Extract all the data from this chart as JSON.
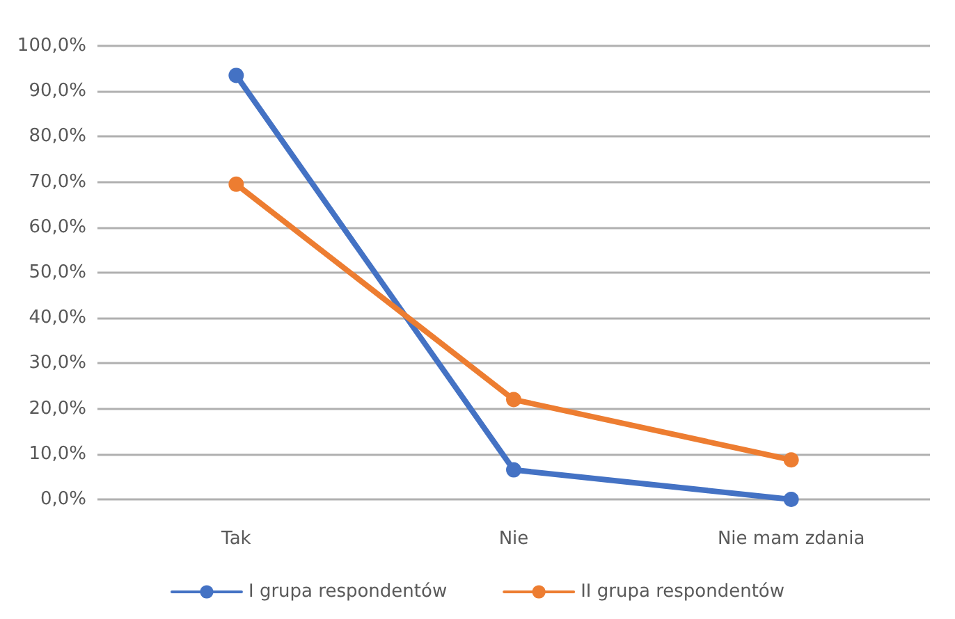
{
  "chart_data": {
    "type": "line",
    "categories": [
      "Tak",
      "Nie",
      "Nie mam zdania"
    ],
    "series": [
      {
        "name": "I grupa respondentów",
        "color": "#4472c4",
        "values": [
          93.5,
          6.5,
          0
        ]
      },
      {
        "name": "II grupa respondentów",
        "color": "#ed7d31",
        "values": [
          69.5,
          22,
          8.7
        ]
      }
    ],
    "ylim": [
      0,
      100
    ],
    "yticks": [
      {
        "value": 0,
        "label": "0,0%"
      },
      {
        "value": 10,
        "label": "10,0%"
      },
      {
        "value": 20,
        "label": "20,0%"
      },
      {
        "value": 30,
        "label": "30,0%"
      },
      {
        "value": 40,
        "label": "40,0%"
      },
      {
        "value": 50,
        "label": "50,0%"
      },
      {
        "value": 60,
        "label": "60,0%"
      },
      {
        "value": 70,
        "label": "70,0%"
      },
      {
        "value": 80,
        "label": "80,0%"
      },
      {
        "value": 90,
        "label": "90,0%"
      },
      {
        "value": 100,
        "label": "100,0%"
      }
    ],
    "grid": "y",
    "legend": "bottom",
    "marker": "circle",
    "line_style": "solid"
  }
}
